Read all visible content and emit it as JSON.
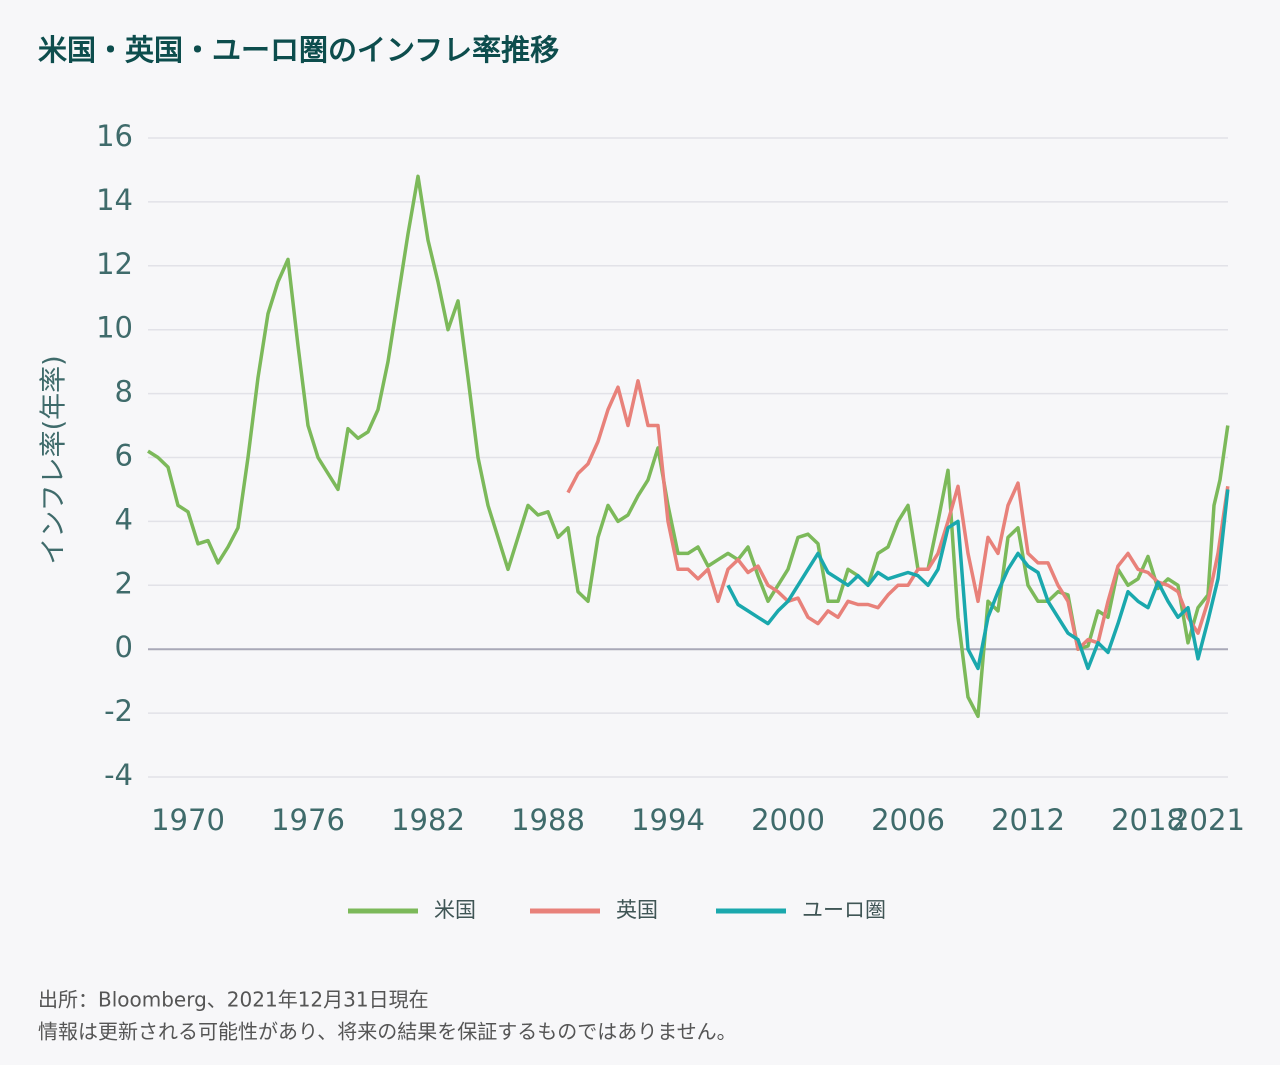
{
  "chart_data": {
    "type": "line",
    "title": "米国・英国・ユーロ圏のインフレ率推移",
    "y_label": "インフレ率(年率)",
    "footnotes": [
      "出所：Bloomberg、2021年12月31日現在",
      "情報は更新される可能性があり、将来の結果を保証するものではありません。"
    ],
    "xlim": [
      1968,
      2022
    ],
    "xticks": [
      1970,
      1976,
      1982,
      1988,
      1994,
      2000,
      2006,
      2012,
      2018,
      2021
    ],
    "ylim": [
      -4,
      16
    ],
    "yticks": [
      -4,
      -2,
      0,
      2,
      4,
      6,
      8,
      10,
      12,
      14,
      16
    ],
    "grid": true,
    "legend": "bottom",
    "series": [
      {
        "name": "米国",
        "color": "#7cb95a",
        "x": [
          1968,
          1968.5,
          1969,
          1969.5,
          1970,
          1970.5,
          1971,
          1971.5,
          1972,
          1972.5,
          1973,
          1973.5,
          1974,
          1974.5,
          1975,
          1975.5,
          1976,
          1976.5,
          1977,
          1977.5,
          1978,
          1978.5,
          1979,
          1979.5,
          1980,
          1980.5,
          1981,
          1981.5,
          1982,
          1982.5,
          1983,
          1983.5,
          1984,
          1984.5,
          1985,
          1985.5,
          1986,
          1986.5,
          1987,
          1987.5,
          1988,
          1988.5,
          1989,
          1989.5,
          1990,
          1990.5,
          1991,
          1991.5,
          1992,
          1992.5,
          1993,
          1993.5,
          1994,
          1994.5,
          1995,
          1995.5,
          1996,
          1996.5,
          1997,
          1997.5,
          1998,
          1998.5,
          1999,
          1999.5,
          2000,
          2000.5,
          2001,
          2001.5,
          2002,
          2002.5,
          2003,
          2003.5,
          2004,
          2004.5,
          2005,
          2005.5,
          2006,
          2006.5,
          2007,
          2007.5,
          2008,
          2008.5,
          2009,
          2009.5,
          2010,
          2010.5,
          2011,
          2011.5,
          2012,
          2012.5,
          2013,
          2013.5,
          2014,
          2014.5,
          2015,
          2015.5,
          2016,
          2016.5,
          2017,
          2017.5,
          2018,
          2018.5,
          2019,
          2019.5,
          2020,
          2020.5,
          2021,
          2021.3,
          2021.6,
          2021.99
        ],
        "values": [
          6.2,
          6.0,
          5.7,
          4.5,
          4.3,
          3.3,
          3.4,
          2.7,
          3.2,
          3.8,
          6.0,
          8.5,
          10.5,
          11.5,
          12.2,
          9.5,
          7.0,
          6.0,
          5.5,
          5.0,
          6.9,
          6.6,
          6.8,
          7.5,
          9.0,
          11.0,
          13.0,
          14.8,
          12.8,
          11.5,
          10.0,
          10.9,
          8.5,
          6.0,
          4.5,
          3.5,
          2.5,
          3.5,
          4.5,
          4.2,
          4.3,
          3.5,
          3.8,
          1.8,
          1.5,
          3.5,
          4.5,
          4.0,
          4.2,
          4.8,
          5.3,
          6.3,
          4.5,
          3.0,
          3.0,
          3.2,
          2.6,
          2.8,
          3.0,
          2.8,
          3.2,
          2.3,
          1.5,
          2.0,
          2.5,
          3.5,
          3.6,
          3.3,
          1.5,
          1.5,
          2.5,
          2.3,
          2.0,
          3.0,
          3.2,
          4.0,
          4.5,
          2.5,
          2.5,
          4.0,
          5.6,
          1.0,
          -1.5,
          -2.1,
          1.5,
          1.2,
          3.5,
          3.8,
          2.0,
          1.5,
          1.5,
          1.8,
          1.7,
          0.0,
          0.1,
          1.2,
          1.0,
          2.5,
          2.0,
          2.2,
          2.9,
          1.9,
          2.2,
          2.0,
          0.2,
          1.3,
          1.7,
          4.5,
          5.3,
          7.0
        ]
      },
      {
        "name": "英国",
        "color": "#e8817a",
        "x": [
          1989,
          1989.5,
          1990,
          1990.5,
          1991,
          1991.5,
          1992,
          1992.5,
          1993,
          1993.5,
          1994,
          1994.5,
          1995,
          1995.5,
          1996,
          1996.5,
          1997,
          1997.5,
          1998,
          1998.5,
          1999,
          1999.5,
          2000,
          2000.5,
          2001,
          2001.5,
          2002,
          2002.5,
          2003,
          2003.5,
          2004,
          2004.5,
          2005,
          2005.5,
          2006,
          2006.5,
          2007,
          2007.5,
          2008,
          2008.5,
          2009,
          2009.5,
          2010,
          2010.5,
          2011,
          2011.5,
          2012,
          2012.5,
          2013,
          2013.5,
          2014,
          2014.5,
          2015,
          2015.5,
          2016,
          2016.5,
          2017,
          2017.5,
          2018,
          2018.5,
          2019,
          2019.5,
          2020,
          2020.5,
          2021,
          2021.5,
          2021.99
        ],
        "values": [
          4.9,
          5.5,
          5.8,
          6.5,
          7.5,
          8.2,
          7.0,
          8.4,
          7.0,
          7.0,
          4.0,
          2.5,
          2.5,
          2.2,
          2.5,
          1.5,
          2.5,
          2.8,
          2.4,
          2.6,
          2.0,
          1.8,
          1.5,
          1.6,
          1.0,
          0.8,
          1.2,
          1.0,
          1.5,
          1.4,
          1.4,
          1.3,
          1.7,
          2.0,
          2.0,
          2.5,
          2.5,
          3.0,
          4.0,
          5.1,
          3.0,
          1.5,
          3.5,
          3.0,
          4.5,
          5.2,
          3.0,
          2.7,
          2.7,
          2.0,
          1.5,
          0.0,
          0.3,
          0.2,
          1.5,
          2.6,
          3.0,
          2.5,
          2.4,
          2.1,
          2.0,
          1.8,
          1.0,
          0.5,
          1.5,
          3.0,
          5.1
        ]
      },
      {
        "name": "ユーロ圏",
        "color": "#1aa8ad",
        "x": [
          1997,
          1997.5,
          1998,
          1998.5,
          1999,
          1999.5,
          2000,
          2000.5,
          2001,
          2001.5,
          2002,
          2002.5,
          2003,
          2003.5,
          2004,
          2004.5,
          2005,
          2005.5,
          2006,
          2006.5,
          2007,
          2007.5,
          2008,
          2008.5,
          2009,
          2009.5,
          2010,
          2010.5,
          2011,
          2011.5,
          2012,
          2012.5,
          2013,
          2013.5,
          2014,
          2014.5,
          2015,
          2015.5,
          2016,
          2016.5,
          2017,
          2017.5,
          2018,
          2018.5,
          2019,
          2019.5,
          2020,
          2020.5,
          2021,
          2021.5,
          2021.99
        ],
        "values": [
          2.0,
          1.4,
          1.2,
          1.0,
          0.8,
          1.2,
          1.5,
          2.0,
          2.5,
          3.0,
          2.4,
          2.2,
          2.0,
          2.3,
          2.0,
          2.4,
          2.2,
          2.3,
          2.4,
          2.3,
          2.0,
          2.5,
          3.8,
          4.0,
          0.0,
          -0.6,
          1.0,
          1.8,
          2.5,
          3.0,
          2.6,
          2.4,
          1.5,
          1.0,
          0.5,
          0.3,
          -0.6,
          0.2,
          -0.1,
          0.8,
          1.8,
          1.5,
          1.3,
          2.1,
          1.5,
          1.0,
          1.3,
          -0.3,
          0.9,
          2.2,
          5.0
        ]
      }
    ]
  }
}
